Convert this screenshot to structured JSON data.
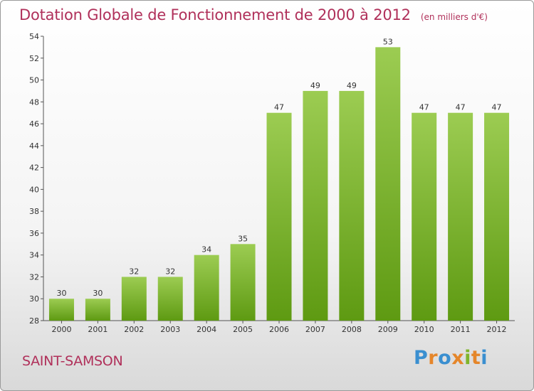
{
  "header": {
    "title": "Dotation Globale de Fonctionnement de 2000 à 2012",
    "unit": "(en milliers d'€)"
  },
  "footer": {
    "city": "SAINT-SAMSON",
    "brand": "Proxiti"
  },
  "colors": {
    "title": "#b0305a",
    "bar_light": "#9ccc52",
    "bar_dark": "#5e9a12",
    "brand_letters": [
      "#3a8fd0",
      "#e5862a",
      "#3a8fd0",
      "#e5862a",
      "#7fb52b",
      "#e5862a",
      "#3a8fd0"
    ]
  },
  "chart_data": {
    "type": "bar",
    "title": "Dotation Globale de Fonctionnement de 2000 à 2012",
    "subtitle": "(en milliers d'€)",
    "categories": [
      "2000",
      "2001",
      "2002",
      "2003",
      "2004",
      "2005",
      "2006",
      "2007",
      "2008",
      "2009",
      "2010",
      "2011",
      "2012"
    ],
    "values": [
      30,
      30,
      32,
      32,
      34,
      35,
      47,
      49,
      49,
      53,
      47,
      47,
      47
    ],
    "data_labels": [
      "30",
      "30",
      "32",
      "32",
      "34",
      "35",
      "47",
      "49",
      "49",
      "53",
      "47",
      "47",
      "47"
    ],
    "ylim": [
      28,
      54
    ],
    "yticks": [
      28,
      30,
      32,
      34,
      36,
      38,
      40,
      42,
      44,
      46,
      48,
      50,
      52,
      54
    ],
    "grid": false,
    "legend": "none"
  }
}
